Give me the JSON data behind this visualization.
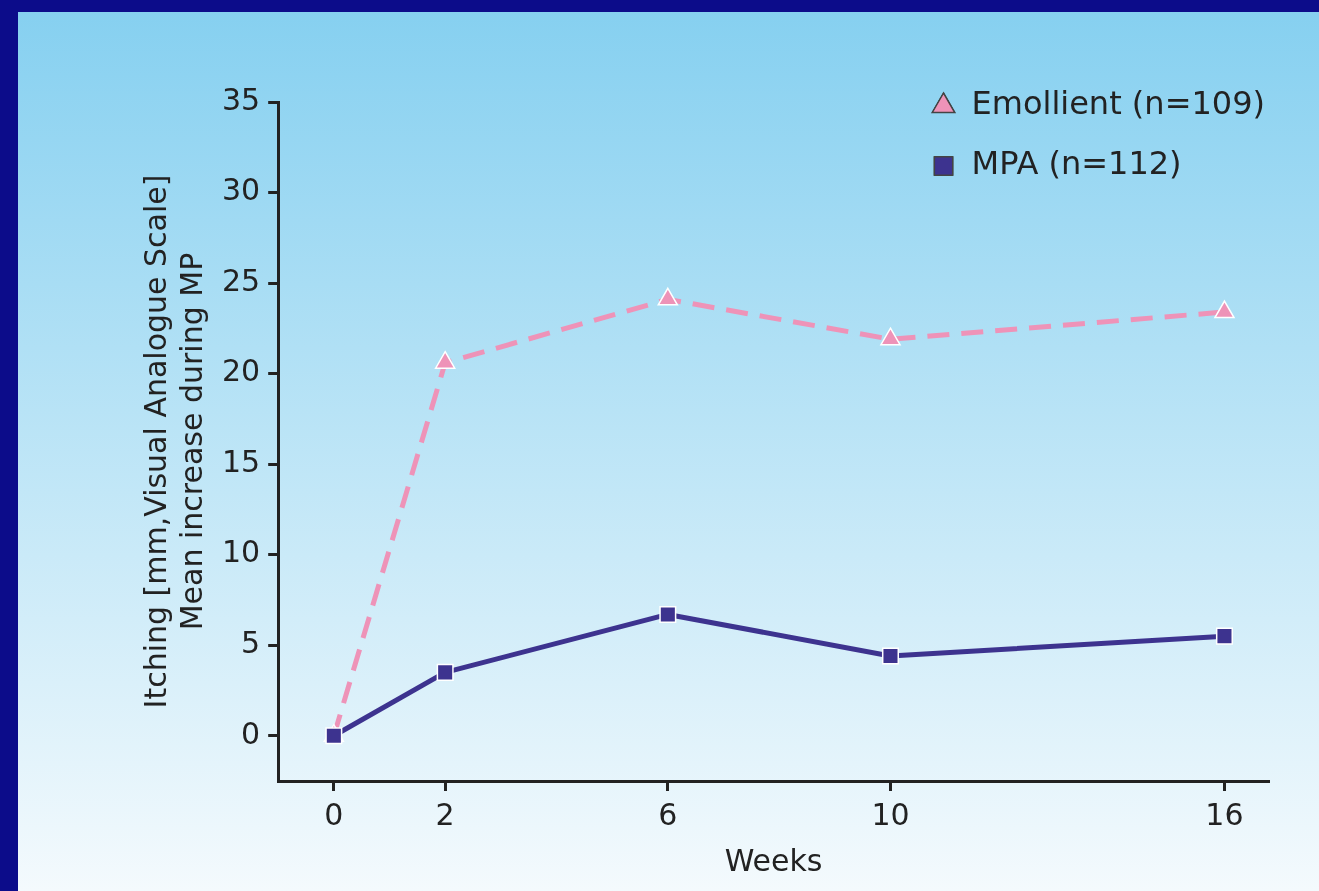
{
  "chart_data": {
    "type": "line",
    "xlabel": "Weeks",
    "ylabel": "Itching [mm,Visual Analogue Scale]\nMean increase during MP",
    "x": [
      0,
      2,
      6,
      10,
      16
    ],
    "xlim": [
      -1,
      16.8
    ],
    "xticks": [
      0,
      2,
      6,
      10,
      16
    ],
    "ylim": [
      -2.5,
      35
    ],
    "yticks": [
      0,
      5,
      10,
      15,
      20,
      25,
      30,
      35
    ],
    "series": [
      {
        "name": "Emollient (n=109)",
        "color": "#ee93b8",
        "values": [
          0,
          20.6,
          24.1,
          21.9,
          23.4
        ],
        "marker": "triangle",
        "line_style": "dashed"
      },
      {
        "name": "MPA (n=112)",
        "color": "#3d338f",
        "values": [
          0,
          3.5,
          6.7,
          4.4,
          5.5
        ],
        "marker": "square",
        "line_style": "solid"
      }
    ],
    "grid": false,
    "legend": "top right"
  }
}
